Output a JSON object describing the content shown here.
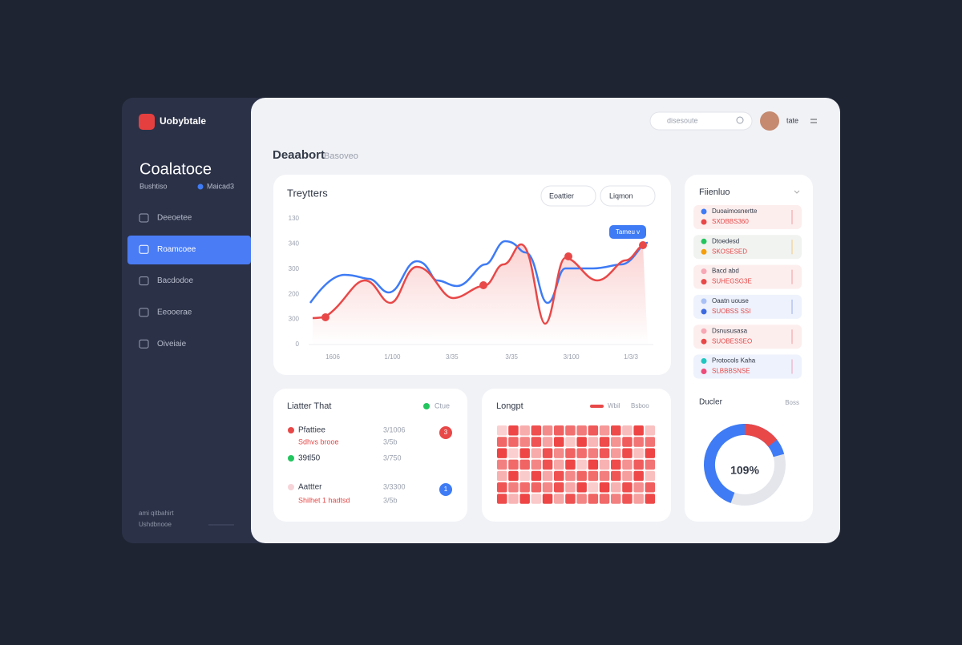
{
  "sidebar": {
    "brand": "Uobybtale",
    "title": "Coalatoce",
    "subtitle": "Bushtiso",
    "status": "Maicad3",
    "nav": [
      "Deeoetee",
      "Roamcoee",
      "Bacdodoe",
      "Eeooerae",
      "Oiveiaie"
    ],
    "footer": [
      "ami qitbahirt",
      "Ushdbnooe"
    ]
  },
  "topbar": {
    "search": "disesoute",
    "user": "tate"
  },
  "header": {
    "title": "Deaabort",
    "subtitle": "Basoveo"
  },
  "trend_card": {
    "title": "Treytters",
    "buttons": [
      "Eoattier",
      "Liqmon"
    ],
    "tag": "Tameu v",
    "y_labels": [
      "130",
      "340",
      "300",
      "200",
      "300",
      "0"
    ],
    "x_labels": [
      "1606",
      "1/100",
      "3/35",
      "3/35",
      "3/100",
      "1/3/3"
    ]
  },
  "list_card": {
    "title": "Liatter That",
    "legend": "Ctue",
    "rows": [
      {
        "name": "Pfattiee",
        "value": "3/1006",
        "note": "Sdhvs brooe",
        "note_value": "3/5b",
        "badge": "3"
      },
      {
        "name": "39tl50",
        "value": "3/750"
      },
      {
        "name": "Aattter",
        "value": "3/3300",
        "note": "Shilhet 1 hadtsd",
        "note_value": "3/5b",
        "badge": "1"
      }
    ]
  },
  "heat_card": {
    "title": "Longpt",
    "legend": [
      "Wbil",
      "Bsboo"
    ]
  },
  "side_card": {
    "title": "Fiienluo",
    "items": [
      [
        "Duoaimosnertte",
        "SXDBBS360"
      ],
      [
        "Dtoedesd",
        "SKOSESED"
      ],
      [
        "Bacd abd",
        "SUHEGSG3E"
      ],
      [
        "Oaatn uouse",
        "SUOBSS SSI"
      ],
      [
        "Dsnususasa",
        "SUOBESSEO"
      ],
      [
        "Protocols Kaha",
        "SLBBBSNSE"
      ]
    ],
    "donut_title": "Ducler",
    "donut_note": "Boss",
    "donut_center": "109%"
  }
}
